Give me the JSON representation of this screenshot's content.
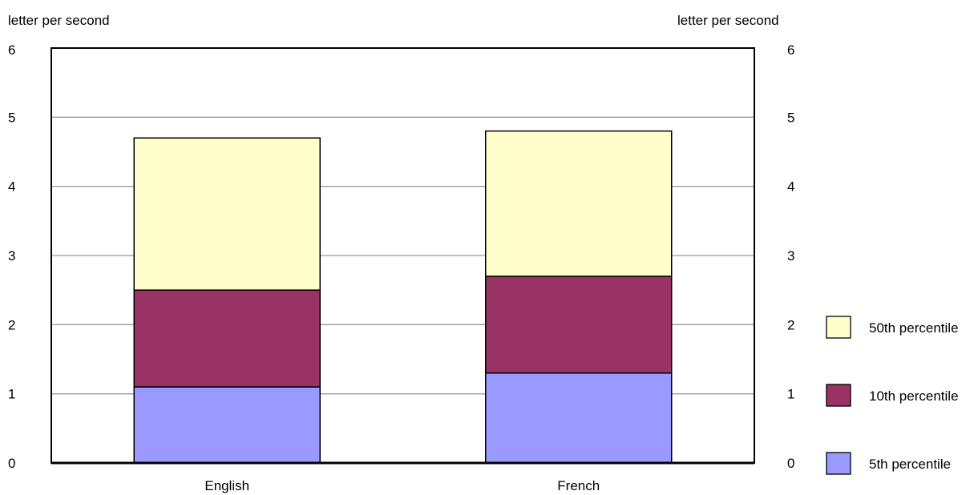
{
  "chart_data": {
    "type": "bar",
    "stacked": true,
    "title": "",
    "xlabel": "",
    "ylabel_left": "letter per second",
    "ylabel_right": "letter per second",
    "categories": [
      "English",
      "French"
    ],
    "series": [
      {
        "name": "5th percentile",
        "values": [
          1.1,
          1.3
        ],
        "color": "#9999ff"
      },
      {
        "name": "10th percentile",
        "values": [
          1.4,
          1.4
        ],
        "color": "#993366"
      },
      {
        "name": "50th percentile",
        "values": [
          2.2,
          2.1
        ],
        "color": "#ffffcc"
      }
    ],
    "ylim": [
      0,
      6
    ],
    "yticks": [
      "0",
      "1",
      "2",
      "3",
      "4",
      "5",
      "6"
    ],
    "grid": true,
    "legend_position": "right"
  }
}
